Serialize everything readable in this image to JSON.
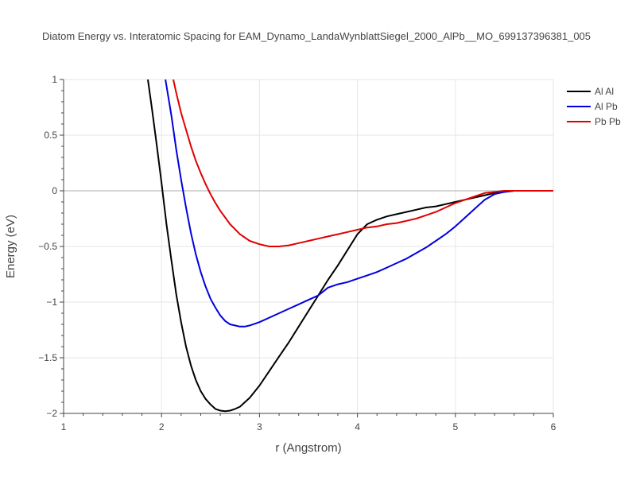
{
  "chart_data": {
    "type": "line",
    "title": "Diatom Energy vs. Interatomic Spacing for EAM_Dynamo_LandaWynblattSiegel_2000_AlPb__MO_699137396381_005",
    "xlabel": "r (Angstrom)",
    "ylabel": "Energy (eV)",
    "xlim": [
      1,
      6
    ],
    "ylim": [
      -2,
      1
    ],
    "xticks": [
      1,
      2,
      3,
      4,
      5,
      6
    ],
    "xtick_labels": [
      "1",
      "2",
      "3",
      "4",
      "5",
      "6"
    ],
    "yticks": [
      1,
      0.5,
      0,
      -0.5,
      -1,
      -1.5,
      -2
    ],
    "ytick_labels": [
      "1",
      "0.5",
      "0",
      "−0.5",
      "−1",
      "−1.5",
      "−2"
    ],
    "grid": true,
    "legend_position": "top-right",
    "series": [
      {
        "name": "Al Al",
        "color": "#000000",
        "points": [
          [
            1.86,
            1.0
          ],
          [
            1.9,
            0.75
          ],
          [
            1.95,
            0.42
          ],
          [
            2.0,
            0.07
          ],
          [
            2.05,
            -0.3
          ],
          [
            2.1,
            -0.62
          ],
          [
            2.15,
            -0.93
          ],
          [
            2.2,
            -1.18
          ],
          [
            2.25,
            -1.4
          ],
          [
            2.3,
            -1.57
          ],
          [
            2.35,
            -1.7
          ],
          [
            2.4,
            -1.8
          ],
          [
            2.45,
            -1.87
          ],
          [
            2.5,
            -1.92
          ],
          [
            2.55,
            -1.96
          ],
          [
            2.6,
            -1.975
          ],
          [
            2.65,
            -1.98
          ],
          [
            2.7,
            -1.975
          ],
          [
            2.75,
            -1.96
          ],
          [
            2.8,
            -1.94
          ],
          [
            2.85,
            -1.9
          ],
          [
            2.9,
            -1.86
          ],
          [
            3.0,
            -1.75
          ],
          [
            3.1,
            -1.62
          ],
          [
            3.2,
            -1.49
          ],
          [
            3.3,
            -1.36
          ],
          [
            3.4,
            -1.22
          ],
          [
            3.5,
            -1.08
          ],
          [
            3.6,
            -0.94
          ],
          [
            3.7,
            -0.8
          ],
          [
            3.8,
            -0.67
          ],
          [
            3.9,
            -0.53
          ],
          [
            4.0,
            -0.39
          ],
          [
            4.1,
            -0.3
          ],
          [
            4.2,
            -0.26
          ],
          [
            4.3,
            -0.23
          ],
          [
            4.4,
            -0.21
          ],
          [
            4.5,
            -0.19
          ],
          [
            4.6,
            -0.17
          ],
          [
            4.7,
            -0.15
          ],
          [
            4.8,
            -0.14
          ],
          [
            4.9,
            -0.12
          ],
          [
            5.0,
            -0.1
          ],
          [
            5.1,
            -0.08
          ],
          [
            5.2,
            -0.06
          ],
          [
            5.3,
            -0.04
          ],
          [
            5.4,
            -0.02
          ],
          [
            5.5,
            -0.01
          ],
          [
            5.6,
            0.0
          ],
          [
            5.8,
            0.0
          ],
          [
            6.0,
            0.0
          ]
        ]
      },
      {
        "name": "Al Pb",
        "color": "#0000e0",
        "points": [
          [
            2.04,
            1.0
          ],
          [
            2.1,
            0.68
          ],
          [
            2.15,
            0.37
          ],
          [
            2.2,
            0.1
          ],
          [
            2.25,
            -0.15
          ],
          [
            2.3,
            -0.38
          ],
          [
            2.35,
            -0.57
          ],
          [
            2.4,
            -0.73
          ],
          [
            2.45,
            -0.86
          ],
          [
            2.5,
            -0.97
          ],
          [
            2.55,
            -1.05
          ],
          [
            2.6,
            -1.12
          ],
          [
            2.65,
            -1.17
          ],
          [
            2.7,
            -1.2
          ],
          [
            2.75,
            -1.21
          ],
          [
            2.8,
            -1.22
          ],
          [
            2.85,
            -1.22
          ],
          [
            2.9,
            -1.21
          ],
          [
            3.0,
            -1.18
          ],
          [
            3.1,
            -1.14
          ],
          [
            3.2,
            -1.1
          ],
          [
            3.3,
            -1.06
          ],
          [
            3.4,
            -1.02
          ],
          [
            3.5,
            -0.98
          ],
          [
            3.6,
            -0.94
          ],
          [
            3.7,
            -0.87
          ],
          [
            3.8,
            -0.84
          ],
          [
            3.9,
            -0.82
          ],
          [
            4.0,
            -0.79
          ],
          [
            4.1,
            -0.76
          ],
          [
            4.2,
            -0.73
          ],
          [
            4.3,
            -0.69
          ],
          [
            4.4,
            -0.65
          ],
          [
            4.5,
            -0.61
          ],
          [
            4.6,
            -0.56
          ],
          [
            4.7,
            -0.51
          ],
          [
            4.8,
            -0.45
          ],
          [
            4.9,
            -0.39
          ],
          [
            5.0,
            -0.32
          ],
          [
            5.1,
            -0.24
          ],
          [
            5.2,
            -0.16
          ],
          [
            5.3,
            -0.08
          ],
          [
            5.4,
            -0.03
          ],
          [
            5.5,
            -0.01
          ],
          [
            5.6,
            0.0
          ],
          [
            5.8,
            0.0
          ],
          [
            6.0,
            0.0
          ]
        ]
      },
      {
        "name": "Pb Pb",
        "color": "#e00000",
        "points": [
          [
            2.12,
            1.0
          ],
          [
            2.15,
            0.88
          ],
          [
            2.2,
            0.7
          ],
          [
            2.25,
            0.55
          ],
          [
            2.3,
            0.4
          ],
          [
            2.35,
            0.27
          ],
          [
            2.4,
            0.16
          ],
          [
            2.45,
            0.06
          ],
          [
            2.5,
            -0.03
          ],
          [
            2.55,
            -0.11
          ],
          [
            2.6,
            -0.18
          ],
          [
            2.65,
            -0.24
          ],
          [
            2.7,
            -0.3
          ],
          [
            2.8,
            -0.39
          ],
          [
            2.9,
            -0.45
          ],
          [
            3.0,
            -0.48
          ],
          [
            3.1,
            -0.5
          ],
          [
            3.2,
            -0.5
          ],
          [
            3.3,
            -0.49
          ],
          [
            3.4,
            -0.47
          ],
          [
            3.5,
            -0.45
          ],
          [
            3.6,
            -0.43
          ],
          [
            3.7,
            -0.41
          ],
          [
            3.8,
            -0.39
          ],
          [
            3.9,
            -0.37
          ],
          [
            4.0,
            -0.35
          ],
          [
            4.1,
            -0.33
          ],
          [
            4.2,
            -0.32
          ],
          [
            4.3,
            -0.3
          ],
          [
            4.4,
            -0.29
          ],
          [
            4.5,
            -0.27
          ],
          [
            4.6,
            -0.25
          ],
          [
            4.7,
            -0.22
          ],
          [
            4.8,
            -0.19
          ],
          [
            4.9,
            -0.15
          ],
          [
            5.0,
            -0.11
          ],
          [
            5.1,
            -0.08
          ],
          [
            5.2,
            -0.05
          ],
          [
            5.3,
            -0.02
          ],
          [
            5.4,
            -0.01
          ],
          [
            5.5,
            0.0
          ],
          [
            5.7,
            0.0
          ],
          [
            6.0,
            0.0
          ]
        ]
      }
    ]
  }
}
